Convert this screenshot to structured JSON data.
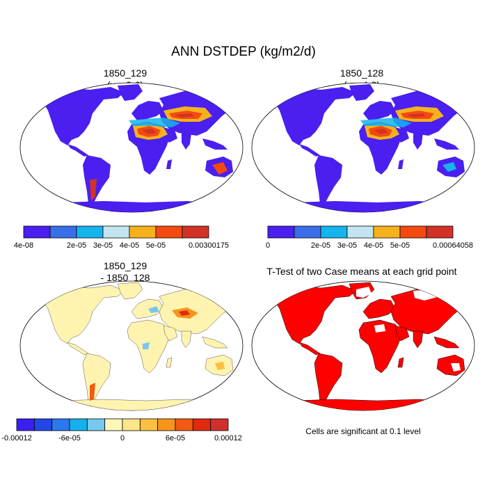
{
  "title": "ANN DSTDEP (kg/m2/d)",
  "panels": [
    {
      "id": "p1",
      "line1": "1850_129",
      "line2": "(yrs 2-6)"
    },
    {
      "id": "p2",
      "line1": "1850_128",
      "line2": "(yrs 4-8)"
    },
    {
      "id": "p3",
      "line1": "1850_129",
      "line2": "- 1850_128"
    },
    {
      "id": "p4",
      "line1": "T-Test of two Case means at each grid point",
      "line2": ""
    }
  ],
  "colorbars": [
    {
      "id": "cb1",
      "colors": [
        "#4a1ff0",
        "#3a6de8",
        "#14b4ec",
        "#c4e4f2",
        "#f6b21c",
        "#f44a10",
        "#d23228"
      ],
      "labels": [
        {
          "text": "4e-08",
          "at": 0
        },
        {
          "text": "2e-05",
          "at": 2
        },
        {
          "text": "3e-05",
          "at": 3
        },
        {
          "text": "4e-05",
          "at": 4
        },
        {
          "text": "5e-05",
          "at": 5
        },
        {
          "text": "0.00300175",
          "at": 7
        }
      ]
    },
    {
      "id": "cb2",
      "colors": [
        "#4a1ff0",
        "#3a6de8",
        "#14b4ec",
        "#c4e4f2",
        "#f6b21c",
        "#f44a10",
        "#d23228"
      ],
      "labels": [
        {
          "text": "0",
          "at": 0
        },
        {
          "text": "2e-05",
          "at": 2
        },
        {
          "text": "3e-05",
          "at": 3
        },
        {
          "text": "4e-05",
          "at": 4
        },
        {
          "text": "5e-05",
          "at": 5
        },
        {
          "text": "0.00064058",
          "at": 7
        }
      ]
    },
    {
      "id": "cb3",
      "colors": [
        "#3a1ff2",
        "#2247e6",
        "#2a78ec",
        "#16b0ec",
        "#76c8ee",
        "#fff8b8",
        "#fde68a",
        "#fbc040",
        "#f8941a",
        "#f05a12",
        "#e02a0e",
        "#d0302c"
      ],
      "labels": [
        {
          "text": "-0.00012",
          "at": 0
        },
        {
          "text": "-6e-05",
          "at": 3
        },
        {
          "text": "0",
          "at": 6
        },
        {
          "text": "6e-05",
          "at": 9
        },
        {
          "text": "0.00012",
          "at": 12
        }
      ]
    }
  ],
  "note": "Cells are significant at 0.1 level",
  "map_colors": {
    "ocean": "#ffffff",
    "p1_land": "#4a1ff0",
    "p3_land": "#fff3b0",
    "p4_sig": "#ff0000"
  }
}
